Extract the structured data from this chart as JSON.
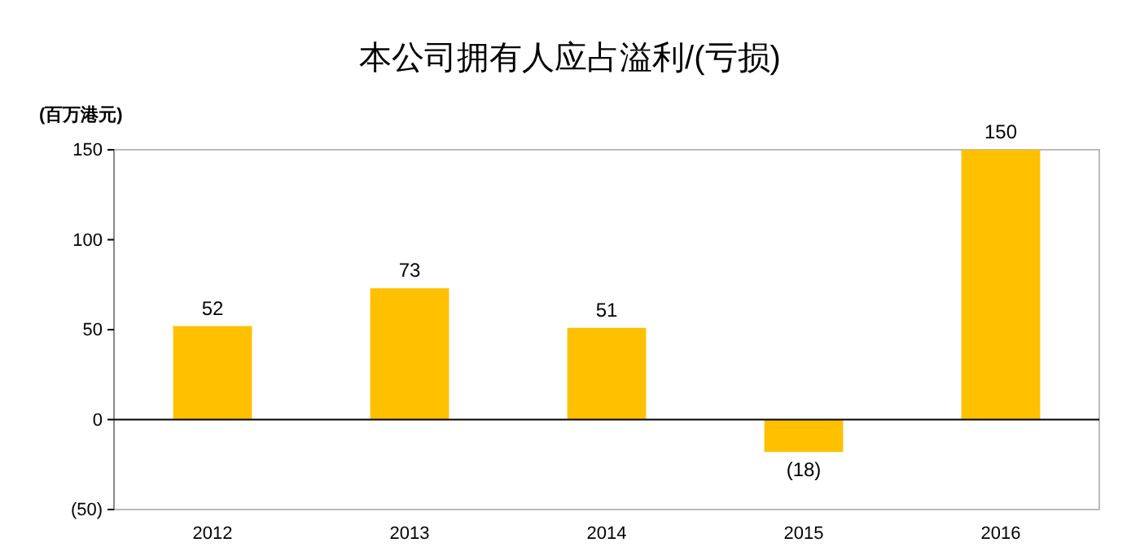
{
  "chart_data": {
    "type": "bar",
    "title": "本公司拥有人应占溢利/(亏损)",
    "ylabel": "(百万港元)",
    "categories": [
      "2012",
      "2013",
      "2014",
      "2015",
      "2016"
    ],
    "values": [
      52,
      73,
      51,
      -18,
      150
    ],
    "value_labels": [
      "52",
      "73",
      "51",
      "(18)",
      "150"
    ],
    "color": "#ffc000",
    "ylim": [
      -50,
      150
    ],
    "yticks": [
      {
        "value": -50,
        "label": "(50)"
      },
      0,
      50,
      100,
      150
    ]
  }
}
